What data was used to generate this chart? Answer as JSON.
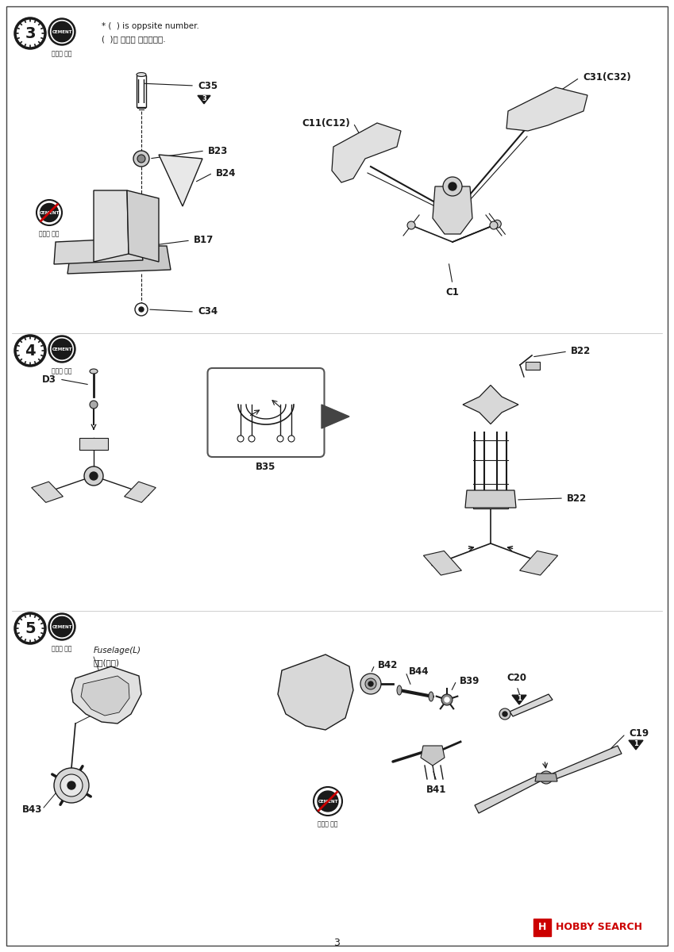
{
  "bg_color": "#ffffff",
  "border_color": "#444444",
  "page_number": "3",
  "note_en": "* (  ) is oppsite number.",
  "note_ko": "(  )는 반대편 번호입니다.",
  "cement_sub3": "접착제 사용",
  "no_cement_sub3": "접착제 금지",
  "cement_sub4": "접착제 사용",
  "cement_sub5": "접착제 사용",
  "no_cement_sub5": "접착제 금지",
  "hobby_search_text": "HOBBY SEARCH",
  "hobby_search_color": "#cc0000",
  "font_color": "#1a1a1a",
  "line_color": "#1a1a1a"
}
